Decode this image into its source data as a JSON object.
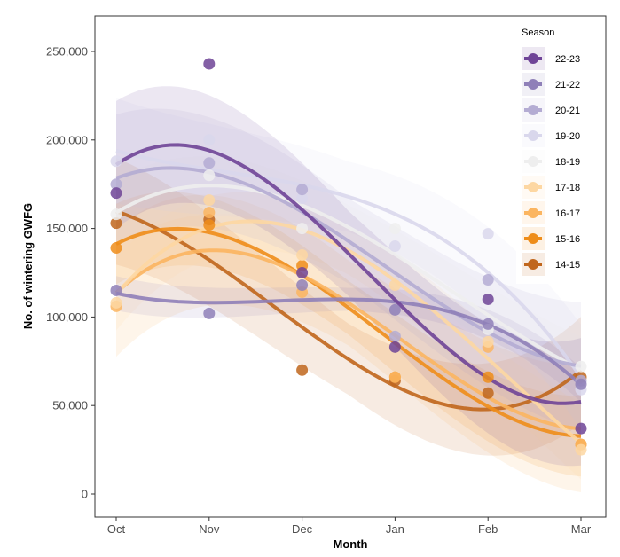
{
  "chart_data": {
    "type": "scatter",
    "title": "",
    "xlabel": "Month",
    "ylabel": "No. of wintering GWFG",
    "categories": [
      "Oct",
      "Nov",
      "Dec",
      "Jan",
      "Feb",
      "Mar"
    ],
    "ylim": [
      -35000,
      260000
    ],
    "yticks": [
      0,
      50000,
      100000,
      150000,
      200000,
      250000
    ],
    "ytick_labels": [
      "0",
      "50,000",
      "100,000",
      "150,000",
      "200,000",
      "250,000"
    ],
    "smoother": "cubic fit with confidence band",
    "grid": false,
    "legend": {
      "title": "Season",
      "placement": "top-right"
    },
    "series": [
      {
        "name": "22-23",
        "color": "#6f4497",
        "values": [
          170000,
          243000,
          125000,
          83000,
          110000,
          37000
        ]
      },
      {
        "name": "21-22",
        "color": "#8f80b8",
        "values": [
          115000,
          102000,
          118000,
          104000,
          96000,
          62000
        ]
      },
      {
        "name": "20-21",
        "color": "#b4acd3",
        "values": [
          175000,
          187000,
          172000,
          89000,
          121000,
          64000
        ]
      },
      {
        "name": "19-20",
        "color": "#d9d7ec",
        "values": [
          188000,
          200000,
          167000,
          140000,
          147000,
          59000
        ]
      },
      {
        "name": "18-19",
        "color": "#eeeeee",
        "values": [
          158000,
          180000,
          150000,
          150000,
          93000,
          72000
        ]
      },
      {
        "name": "17-18",
        "color": "#fdd7a2",
        "values": [
          108000,
          166000,
          135000,
          118000,
          86000,
          25000
        ]
      },
      {
        "name": "16-17",
        "color": "#fbb560",
        "values": [
          106000,
          159000,
          114000,
          66000,
          83000,
          28000
        ]
      },
      {
        "name": "15-16",
        "color": "#ee8d1a",
        "values": [
          139000,
          152000,
          129000,
          66000,
          66000,
          28000
        ]
      },
      {
        "name": "14-15",
        "color": "#c0661c",
        "values": [
          153000,
          155000,
          70000,
          64000,
          57000,
          66000
        ]
      }
    ]
  }
}
